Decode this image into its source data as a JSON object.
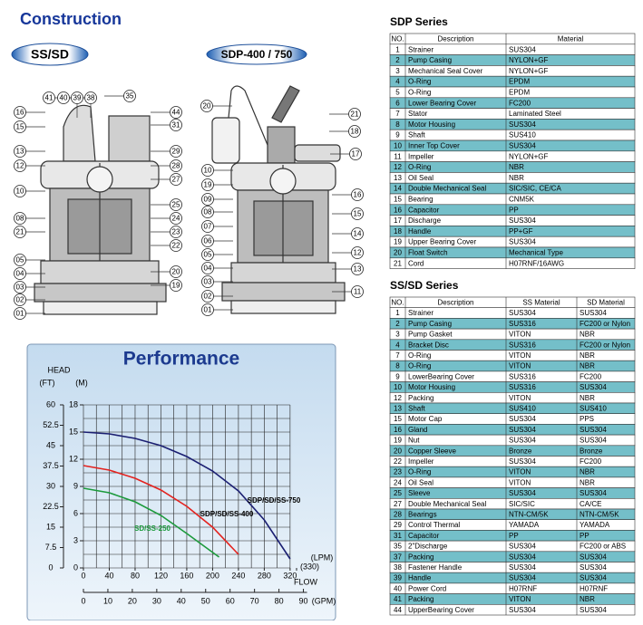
{
  "construction": {
    "title": "Construction",
    "badges": [
      "SS/SD",
      "SDP-400 / 750"
    ],
    "callouts_left": [
      "41",
      "40",
      "39",
      "38",
      "35",
      "16",
      "15",
      "44",
      "31",
      "13",
      "12",
      "29",
      "28",
      "27",
      "10",
      "25",
      "24",
      "23",
      "22",
      "08",
      "21",
      "05",
      "04",
      "20",
      "03",
      "19",
      "02",
      "01"
    ],
    "callouts_right": [
      "20",
      "21",
      "18",
      "17",
      "10",
      "16",
      "19",
      "09",
      "15",
      "08",
      "07",
      "14",
      "06",
      "05",
      "12",
      "04",
      "13",
      "03",
      "11",
      "02",
      "01"
    ]
  },
  "sdp_table": {
    "title": "SDP Series",
    "headers": [
      "NO.",
      "Description",
      "Material"
    ],
    "rows": [
      [
        1,
        "Strainer",
        "SUS304"
      ],
      [
        2,
        "Pump Casing",
        "NYLON+GF"
      ],
      [
        3,
        "Mechanical Seal Cover",
        "NYLON+GF"
      ],
      [
        4,
        "O-Ring",
        "EPDM"
      ],
      [
        5,
        "O-Ring",
        "EPDM"
      ],
      [
        6,
        "Lower Bearing Cover",
        "FC200"
      ],
      [
        7,
        "Stator",
        "Laminated Steel"
      ],
      [
        8,
        "Motor Housing",
        "SUS304"
      ],
      [
        9,
        "Shaft",
        "SUS410"
      ],
      [
        10,
        "Inner Top Cover",
        "SUS304"
      ],
      [
        11,
        "Impeller",
        "NYLON+GF"
      ],
      [
        12,
        "O-Ring",
        "NBR"
      ],
      [
        13,
        "Oil Seal",
        "NBR"
      ],
      [
        14,
        "Double Mechanical Seal",
        "SIC/SIC, CE/CA"
      ],
      [
        15,
        "Bearing",
        "CNM5K"
      ],
      [
        16,
        "Capacitor",
        "PP"
      ],
      [
        17,
        "Discharge",
        "SUS304"
      ],
      [
        18,
        "Handle",
        "PP+GF"
      ],
      [
        19,
        "Upper Bearing Cover",
        "SUS304"
      ],
      [
        20,
        "Float Switch",
        "Mechanical Type"
      ],
      [
        21,
        "Cord",
        "H07RNF/16AWG"
      ]
    ]
  },
  "ss_sd_table": {
    "title": "SS/SD Series",
    "headers": [
      "NO.",
      "Description",
      "SS  Material",
      "SD  Material"
    ],
    "rows": [
      [
        1,
        "Strainer",
        "SUS304",
        "SUS304"
      ],
      [
        2,
        "Pump Casing",
        "SUS316",
        "FC200  or Nylon"
      ],
      [
        3,
        "Pump Gasket",
        "VITON",
        "NBR"
      ],
      [
        4,
        "Bracket Disc",
        "SUS316",
        "FC200  or Nylon"
      ],
      [
        7,
        "O-Ring",
        "VITON",
        "NBR"
      ],
      [
        8,
        "O-Ring",
        "VITON",
        "NBR"
      ],
      [
        9,
        "LowerBearing Cover",
        "SUS316",
        "FC200"
      ],
      [
        10,
        "Motor Housing",
        "SUS316",
        "SUS304"
      ],
      [
        12,
        "Packing",
        "VITON",
        "NBR"
      ],
      [
        13,
        "Shaft",
        "SUS410",
        "SUS410"
      ],
      [
        15,
        "Motor Cap",
        "SUS304",
        "PPS"
      ],
      [
        16,
        "Gland",
        "SUS304",
        "SUS304"
      ],
      [
        19,
        "Nut",
        "SUS304",
        "SUS304"
      ],
      [
        20,
        "Copper Sleeve",
        "Bronze",
        "Bronze"
      ],
      [
        22,
        "Impeller",
        "SUS304",
        "FC200"
      ],
      [
        23,
        "O-Ring",
        "VITON",
        "NBR"
      ],
      [
        24,
        "Oil Seal",
        "VITON",
        "NBR"
      ],
      [
        25,
        "Sleeve",
        "SUS304",
        "SUS304"
      ],
      [
        27,
        "Double Mechanical Seal",
        "SIC/SIC",
        "CA/CE"
      ],
      [
        28,
        "Bearings",
        "NTN-CM/5K",
        "NTN-CM/5K"
      ],
      [
        29,
        "Control Thermal",
        "YAMADA",
        "YAMADA"
      ],
      [
        31,
        "Capacitor",
        "PP",
        "PP"
      ],
      [
        35,
        "2\"Discharge",
        "SUS304",
        "FC200 or ABS"
      ],
      [
        37,
        "Packing",
        "SUS304",
        "SUS304"
      ],
      [
        38,
        "Fastener Handle",
        "SUS304",
        "SUS304"
      ],
      [
        39,
        "Handle",
        "SUS304",
        "SUS304"
      ],
      [
        40,
        "Power Cord",
        "H07RNF",
        "H07RNF"
      ],
      [
        41,
        "Packing",
        "VITON",
        "NBR"
      ],
      [
        44,
        "UpperBearing Cover",
        "SUS304",
        "SUS304"
      ]
    ]
  },
  "chart_data": {
    "type": "line",
    "title": "Performance",
    "y_label": "HEAD",
    "y_unit": "(M)",
    "y2_unit": "(FT)",
    "x_label": "FLOW",
    "x_unit": "(LPM)",
    "x2_unit": "(GPM)",
    "xlim": [
      0,
      330
    ],
    "xticks": [
      0,
      40,
      80,
      120,
      160,
      200,
      240,
      280,
      320,
      {
        "value": 330,
        "label": "(330)"
      }
    ],
    "x2lim": [
      0,
      87.2
    ],
    "x2ticks": [
      0,
      10,
      20,
      30,
      40,
      50,
      60,
      70,
      80,
      90
    ],
    "ylim": [
      0,
      18
    ],
    "yticks": [
      0,
      3,
      6,
      9,
      12,
      15,
      18
    ],
    "y2lim": [
      0,
      60
    ],
    "y2ticks": [
      0,
      7.5,
      15,
      22.5,
      30,
      37.5,
      45,
      52.5,
      60
    ],
    "grid": true,
    "grid_step": {
      "x": 20,
      "y": 1.5
    },
    "series": [
      {
        "name": "SDP/SD/SS-750",
        "color": "#1b1f72",
        "x": [
          0,
          40,
          80,
          120,
          160,
          200,
          240,
          280,
          320
        ],
        "values": [
          15,
          14.8,
          14.3,
          13.5,
          12.3,
          10.7,
          8.5,
          5.3,
          1
        ]
      },
      {
        "name": "SDP/SD/SS-400",
        "color": "#e3221e",
        "x": [
          0,
          40,
          80,
          120,
          160,
          200,
          240
        ],
        "values": [
          11.3,
          10.8,
          9.9,
          8.6,
          6.8,
          4.5,
          1.5
        ]
      },
      {
        "name": "SD/SS-250",
        "color": "#1c9a3c",
        "x": [
          0,
          40,
          80,
          120,
          160,
          210
        ],
        "values": [
          8.8,
          8.3,
          7.3,
          5.8,
          3.8,
          1.2
        ]
      }
    ]
  }
}
